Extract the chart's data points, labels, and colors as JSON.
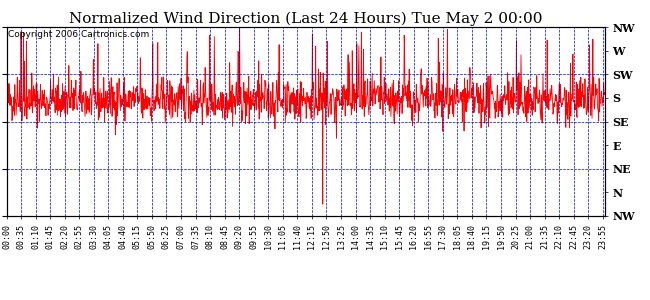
{
  "title": "Normalized Wind Direction (Last 24 Hours) Tue May 2 00:00",
  "copyright": "Copyright 2006 Cartronics.com",
  "ytick_labels": [
    "NW",
    "W",
    "SW",
    "S",
    "SE",
    "E",
    "NE",
    "N",
    "NW"
  ],
  "ytick_values": [
    8,
    7,
    6,
    5,
    4,
    3,
    2,
    1,
    0
  ],
  "ylim": [
    0,
    8
  ],
  "background_color": "#ffffff",
  "plot_bg_color": "#ffffff",
  "grid_color": "#0000cc",
  "line_color": "#ff0000",
  "title_fontsize": 11,
  "copyright_fontsize": 6.5,
  "xlabel_fontsize": 6,
  "ylabel_fontsize": 8,
  "random_seed": 42,
  "base_value": 4.9,
  "noise_std": 0.45,
  "spike_prob": 0.04,
  "spike_magnitude": 2.8,
  "down_spike_idx": 761
}
